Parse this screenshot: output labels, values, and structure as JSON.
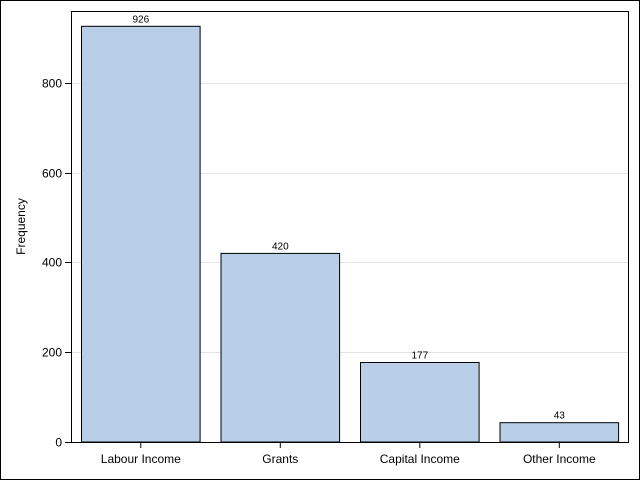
{
  "chart_data": {
    "type": "bar",
    "categories": [
      "Labour Income",
      "Grants",
      "Capital Income",
      "Other Income"
    ],
    "values": [
      926,
      420,
      177,
      43
    ],
    "data_labels": [
      "926",
      "420",
      "177",
      "43"
    ],
    "title": "",
    "xlabel": "",
    "ylabel": "Frequency",
    "ylim": [
      0,
      960
    ],
    "yticks": [
      0,
      200,
      400,
      600,
      800
    ],
    "grid": "horizontal",
    "colors": {
      "bar_fill": "#b9cfe8",
      "bar_stroke": "#000000",
      "grid": "#e4e4e4"
    }
  }
}
